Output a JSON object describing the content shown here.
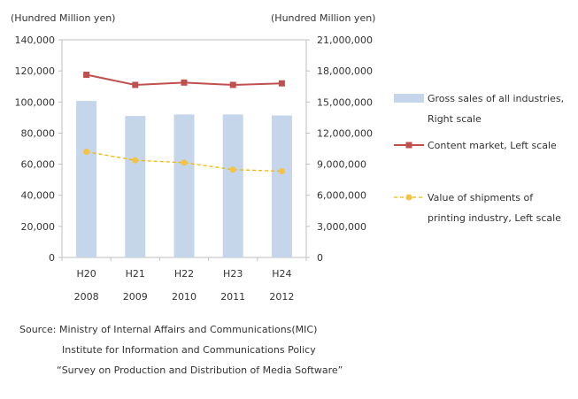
{
  "chart_data": {
    "type": "bar+line",
    "categories": [
      {
        "era": "H20",
        "year": "2008"
      },
      {
        "era": "H21",
        "year": "2009"
      },
      {
        "era": "H22",
        "year": "2010"
      },
      {
        "era": "H23",
        "year": "2011"
      },
      {
        "era": "H24",
        "year": "2012"
      }
    ],
    "left_axis": {
      "unit_label": "(Hundred  Million yen)",
      "ylim": [
        0,
        140000
      ],
      "ticks": [
        "0",
        "20,000",
        "40,000",
        "60,000",
        "80,000",
        "100,000",
        "120,000",
        "140,000"
      ]
    },
    "right_axis": {
      "unit_label": "(Hundred  Million yen)",
      "ylim": [
        0,
        21000000
      ],
      "ticks": [
        "0",
        "3,000,000",
        "6,000,000",
        "9,000,000",
        "12,000,000",
        "15,000,000",
        "18,000,000",
        "21,000,000"
      ]
    },
    "series": [
      {
        "name_lines": [
          "Gross sales of all industries,",
          "Right scale"
        ],
        "kind": "bar",
        "axis": "right",
        "color": "#c5d5ea",
        "values": [
          15100000,
          13650000,
          13800000,
          13800000,
          13700000
        ]
      },
      {
        "name_lines": [
          "Content market, Left scale"
        ],
        "kind": "line",
        "axis": "left",
        "color": "#c0504d",
        "marker": "square",
        "values": [
          117500,
          111000,
          112500,
          111000,
          112000
        ]
      },
      {
        "name_lines": [
          "Value of shipments of",
          "printing industry, Left scale"
        ],
        "kind": "dashed-line",
        "axis": "left",
        "color": "#f5c242",
        "line_color": "#f3b700",
        "marker": "circle",
        "values": [
          68000,
          62500,
          61000,
          56500,
          55500
        ]
      }
    ],
    "grid": false,
    "legend_placement": "right"
  },
  "source": {
    "line1": "Source: Ministry of Internal Affairs and Communications(MIC)",
    "line2": "Institute for Information and Communications Policy",
    "line3": "“Survey on Production  and Distribution of Media Software”"
  }
}
